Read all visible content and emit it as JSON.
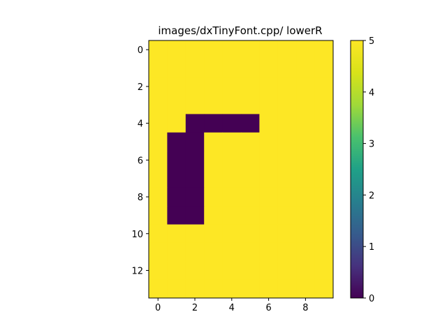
{
  "chart_data": {
    "type": "heatmap",
    "title": "images/dxTinyFont.cpp/ lowerR",
    "rows": 14,
    "cols": 10,
    "grid": [
      [
        5,
        5,
        5,
        5,
        5,
        5,
        5,
        5,
        5,
        5
      ],
      [
        5,
        5,
        5,
        5,
        5,
        5,
        5,
        5,
        5,
        5
      ],
      [
        5,
        5,
        5,
        5,
        5,
        5,
        5,
        5,
        5,
        5
      ],
      [
        5,
        5,
        5,
        5,
        5,
        5,
        5,
        5,
        5,
        5
      ],
      [
        5,
        5,
        0,
        0,
        0,
        0,
        5,
        5,
        5,
        5
      ],
      [
        5,
        0,
        0,
        5,
        5,
        5,
        5,
        5,
        5,
        5
      ],
      [
        5,
        0,
        0,
        5,
        5,
        5,
        5,
        5,
        5,
        5
      ],
      [
        5,
        0,
        0,
        5,
        5,
        5,
        5,
        5,
        5,
        5
      ],
      [
        5,
        0,
        0,
        5,
        5,
        5,
        5,
        5,
        5,
        5
      ],
      [
        5,
        0,
        0,
        5,
        5,
        5,
        5,
        5,
        5,
        5
      ],
      [
        5,
        5,
        5,
        5,
        5,
        5,
        5,
        5,
        5,
        5
      ],
      [
        5,
        5,
        5,
        5,
        5,
        5,
        5,
        5,
        5,
        5
      ],
      [
        5,
        5,
        5,
        5,
        5,
        5,
        5,
        5,
        5,
        5
      ],
      [
        5,
        5,
        5,
        5,
        5,
        5,
        5,
        5,
        5,
        5
      ]
    ],
    "vmin": 0,
    "vmax": 5,
    "colormap": "viridis",
    "xticks": [
      "0",
      "2",
      "4",
      "6",
      "8"
    ],
    "xtick_values": [
      0,
      2,
      4,
      6,
      8
    ],
    "yticks": [
      "0",
      "2",
      "4",
      "6",
      "8",
      "10",
      "12"
    ],
    "ytick_values": [
      0,
      2,
      4,
      6,
      8,
      10,
      12
    ],
    "colorbar_ticks": [
      "0",
      "1",
      "2",
      "3",
      "4",
      "5"
    ],
    "colorbar_values": [
      0,
      1,
      2,
      3,
      4,
      5
    ],
    "grid_on": false
  }
}
